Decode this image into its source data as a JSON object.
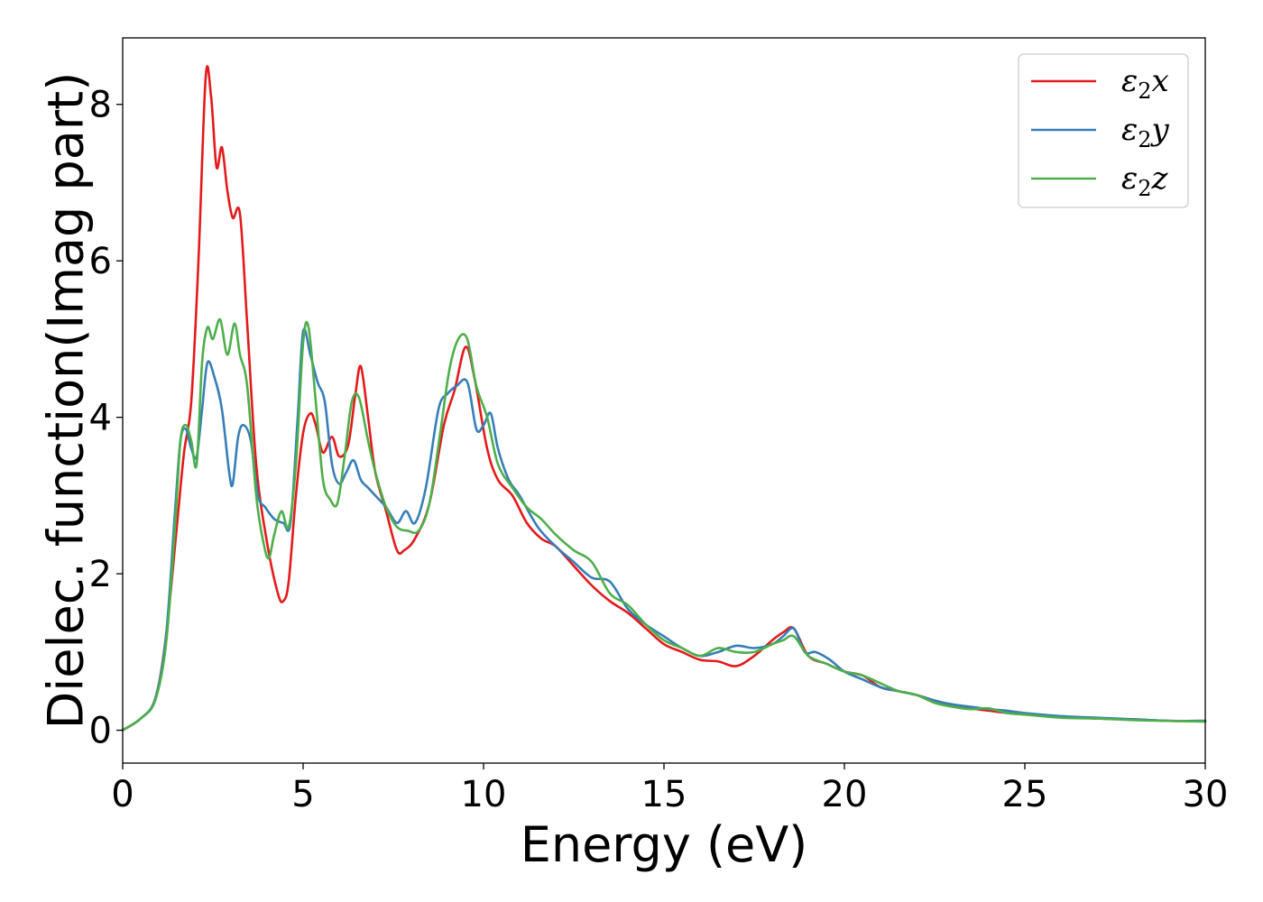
{
  "chart_data": {
    "type": "line",
    "xlabel": "Energy (eV)",
    "ylabel": "Dielec. function(Imag part)",
    "xlim": [
      0,
      30
    ],
    "ylim": [
      -0.42,
      8.85
    ],
    "xticks": [
      0,
      5,
      10,
      15,
      20,
      25,
      30
    ],
    "xtick_labels": [
      "0",
      "5",
      "10",
      "15",
      "20",
      "25",
      "30"
    ],
    "yticks": [
      0,
      2,
      4,
      6,
      8
    ],
    "ytick_labels": [
      "0",
      "2",
      "4",
      "6",
      "8"
    ],
    "grid": false,
    "legend_position": "top-right",
    "series": [
      {
        "name": "ε₂x",
        "legend": {
          "base": "ε",
          "sub": "2",
          "axis": "x"
        },
        "color": "#e41a1c",
        "x": [
          0,
          0.5,
          0.9,
          1.2,
          1.5,
          1.7,
          1.9,
          2.1,
          2.3,
          2.45,
          2.6,
          2.75,
          2.9,
          3.05,
          3.25,
          3.45,
          3.7,
          4.0,
          4.3,
          4.45,
          4.6,
          4.8,
          5.0,
          5.2,
          5.35,
          5.55,
          5.8,
          6.0,
          6.25,
          6.45,
          6.6,
          6.8,
          7.0,
          7.3,
          7.6,
          7.8,
          8.1,
          8.5,
          8.9,
          9.2,
          9.5,
          9.75,
          10.1,
          10.4,
          10.8,
          11.2,
          11.6,
          12.0,
          12.5,
          13.0,
          13.5,
          14.0,
          14.5,
          15.0,
          15.5,
          16.0,
          16.5,
          17.0,
          17.5,
          18.0,
          18.3,
          18.6,
          19.0,
          19.5,
          20.0,
          20.5,
          21.0,
          21.5,
          22.0,
          22.5,
          23.0,
          23.5,
          24.0,
          24.5,
          25.0,
          26.0,
          27.0,
          28.0,
          29.0,
          30.0
        ],
        "y": [
          0,
          0.15,
          0.4,
          1.2,
          2.6,
          3.55,
          4.2,
          6.0,
          8.35,
          8.1,
          7.2,
          7.45,
          6.9,
          6.55,
          6.6,
          5.2,
          3.4,
          2.4,
          1.75,
          1.65,
          1.9,
          3.0,
          3.8,
          4.05,
          3.9,
          3.55,
          3.75,
          3.5,
          3.65,
          4.3,
          4.65,
          4.0,
          3.3,
          2.8,
          2.3,
          2.3,
          2.45,
          2.9,
          3.9,
          4.35,
          4.9,
          4.5,
          3.6,
          3.2,
          3.0,
          2.65,
          2.45,
          2.35,
          2.1,
          1.85,
          1.65,
          1.5,
          1.3,
          1.1,
          1.0,
          0.9,
          0.88,
          0.82,
          0.95,
          1.15,
          1.25,
          1.3,
          0.95,
          0.85,
          0.75,
          0.7,
          0.55,
          0.5,
          0.45,
          0.38,
          0.32,
          0.28,
          0.25,
          0.22,
          0.2,
          0.17,
          0.15,
          0.14,
          0.12,
          0.12
        ]
      },
      {
        "name": "ε₂y",
        "legend": {
          "base": "ε",
          "sub": "2",
          "axis": "y"
        },
        "color": "#377eb8",
        "x": [
          0,
          0.5,
          0.9,
          1.2,
          1.45,
          1.6,
          1.75,
          1.9,
          2.05,
          2.2,
          2.35,
          2.55,
          2.75,
          2.95,
          3.05,
          3.2,
          3.35,
          3.55,
          3.75,
          3.95,
          4.2,
          4.45,
          4.65,
          4.85,
          5.0,
          5.2,
          5.4,
          5.6,
          5.8,
          6.0,
          6.2,
          6.4,
          6.6,
          6.8,
          7.0,
          7.3,
          7.6,
          7.85,
          8.1,
          8.4,
          8.75,
          9.0,
          9.25,
          9.55,
          9.8,
          10.0,
          10.2,
          10.4,
          10.7,
          11.0,
          11.5,
          12.0,
          12.5,
          13.0,
          13.5,
          14.0,
          14.5,
          15.0,
          15.5,
          16.0,
          16.5,
          17.0,
          17.5,
          18.0,
          18.3,
          18.6,
          18.9,
          19.2,
          19.6,
          20.0,
          20.5,
          21.0,
          21.5,
          22.0,
          22.5,
          23.0,
          23.5,
          24.0,
          24.5,
          25.0,
          26.0,
          27.0,
          28.0,
          29.0,
          30.0
        ],
        "y": [
          0,
          0.15,
          0.4,
          1.2,
          2.8,
          3.7,
          3.85,
          3.6,
          3.5,
          4.1,
          4.7,
          4.5,
          4.1,
          3.3,
          3.15,
          3.75,
          3.9,
          3.7,
          3.0,
          2.85,
          2.7,
          2.65,
          2.65,
          4.0,
          5.1,
          4.8,
          4.45,
          4.2,
          3.4,
          3.15,
          3.3,
          3.45,
          3.2,
          3.1,
          3.0,
          2.85,
          2.65,
          2.8,
          2.65,
          3.1,
          4.1,
          4.3,
          4.4,
          4.45,
          3.85,
          3.9,
          4.05,
          3.6,
          3.2,
          3.0,
          2.6,
          2.35,
          2.15,
          1.95,
          1.9,
          1.55,
          1.35,
          1.2,
          1.05,
          0.95,
          1.0,
          1.08,
          1.05,
          1.1,
          1.2,
          1.3,
          1.0,
          1.0,
          0.9,
          0.75,
          0.65,
          0.55,
          0.5,
          0.45,
          0.38,
          0.33,
          0.3,
          0.27,
          0.25,
          0.22,
          0.18,
          0.16,
          0.14,
          0.12,
          0.12
        ]
      },
      {
        "name": "ε₂z",
        "legend": {
          "base": "ε",
          "sub": "2",
          "axis": "z"
        },
        "color": "#4daf4a",
        "x": [
          0,
          0.5,
          0.9,
          1.2,
          1.45,
          1.6,
          1.75,
          1.9,
          2.05,
          2.2,
          2.35,
          2.5,
          2.7,
          2.9,
          3.1,
          3.25,
          3.45,
          3.7,
          3.9,
          4.05,
          4.2,
          4.4,
          4.6,
          4.8,
          5.0,
          5.15,
          5.35,
          5.55,
          5.75,
          5.95,
          6.15,
          6.35,
          6.55,
          6.8,
          7.0,
          7.3,
          7.6,
          7.9,
          8.2,
          8.5,
          8.8,
          9.05,
          9.3,
          9.55,
          9.8,
          10.1,
          10.4,
          10.8,
          11.2,
          11.6,
          12.0,
          12.5,
          13.0,
          13.5,
          14.0,
          14.5,
          15.0,
          15.5,
          16.0,
          16.5,
          17.0,
          17.5,
          18.0,
          18.3,
          18.6,
          19.0,
          19.5,
          20.0,
          20.5,
          21.0,
          21.5,
          22.0,
          22.5,
          23.0,
          23.5,
          24.0,
          24.5,
          25.0,
          26.0,
          27.0,
          28.0,
          29.0,
          30.0
        ],
        "y": [
          0,
          0.15,
          0.38,
          1.1,
          2.6,
          3.7,
          3.9,
          3.7,
          3.4,
          4.7,
          5.15,
          5.0,
          5.25,
          4.8,
          5.2,
          4.8,
          4.4,
          3.0,
          2.4,
          2.2,
          2.5,
          2.8,
          2.6,
          3.4,
          4.95,
          5.15,
          4.2,
          3.2,
          2.95,
          2.9,
          3.5,
          4.2,
          4.25,
          3.7,
          3.3,
          2.85,
          2.6,
          2.55,
          2.55,
          2.9,
          3.8,
          4.6,
          5.0,
          5.0,
          4.4,
          4.0,
          3.4,
          3.1,
          2.85,
          2.7,
          2.5,
          2.3,
          2.15,
          1.75,
          1.6,
          1.35,
          1.15,
          1.05,
          0.95,
          1.05,
          1.0,
          1.0,
          1.1,
          1.15,
          1.2,
          0.95,
          0.85,
          0.75,
          0.7,
          0.6,
          0.5,
          0.45,
          0.35,
          0.3,
          0.27,
          0.28,
          0.22,
          0.2,
          0.16,
          0.15,
          0.13,
          0.12,
          0.11
        ]
      }
    ]
  }
}
